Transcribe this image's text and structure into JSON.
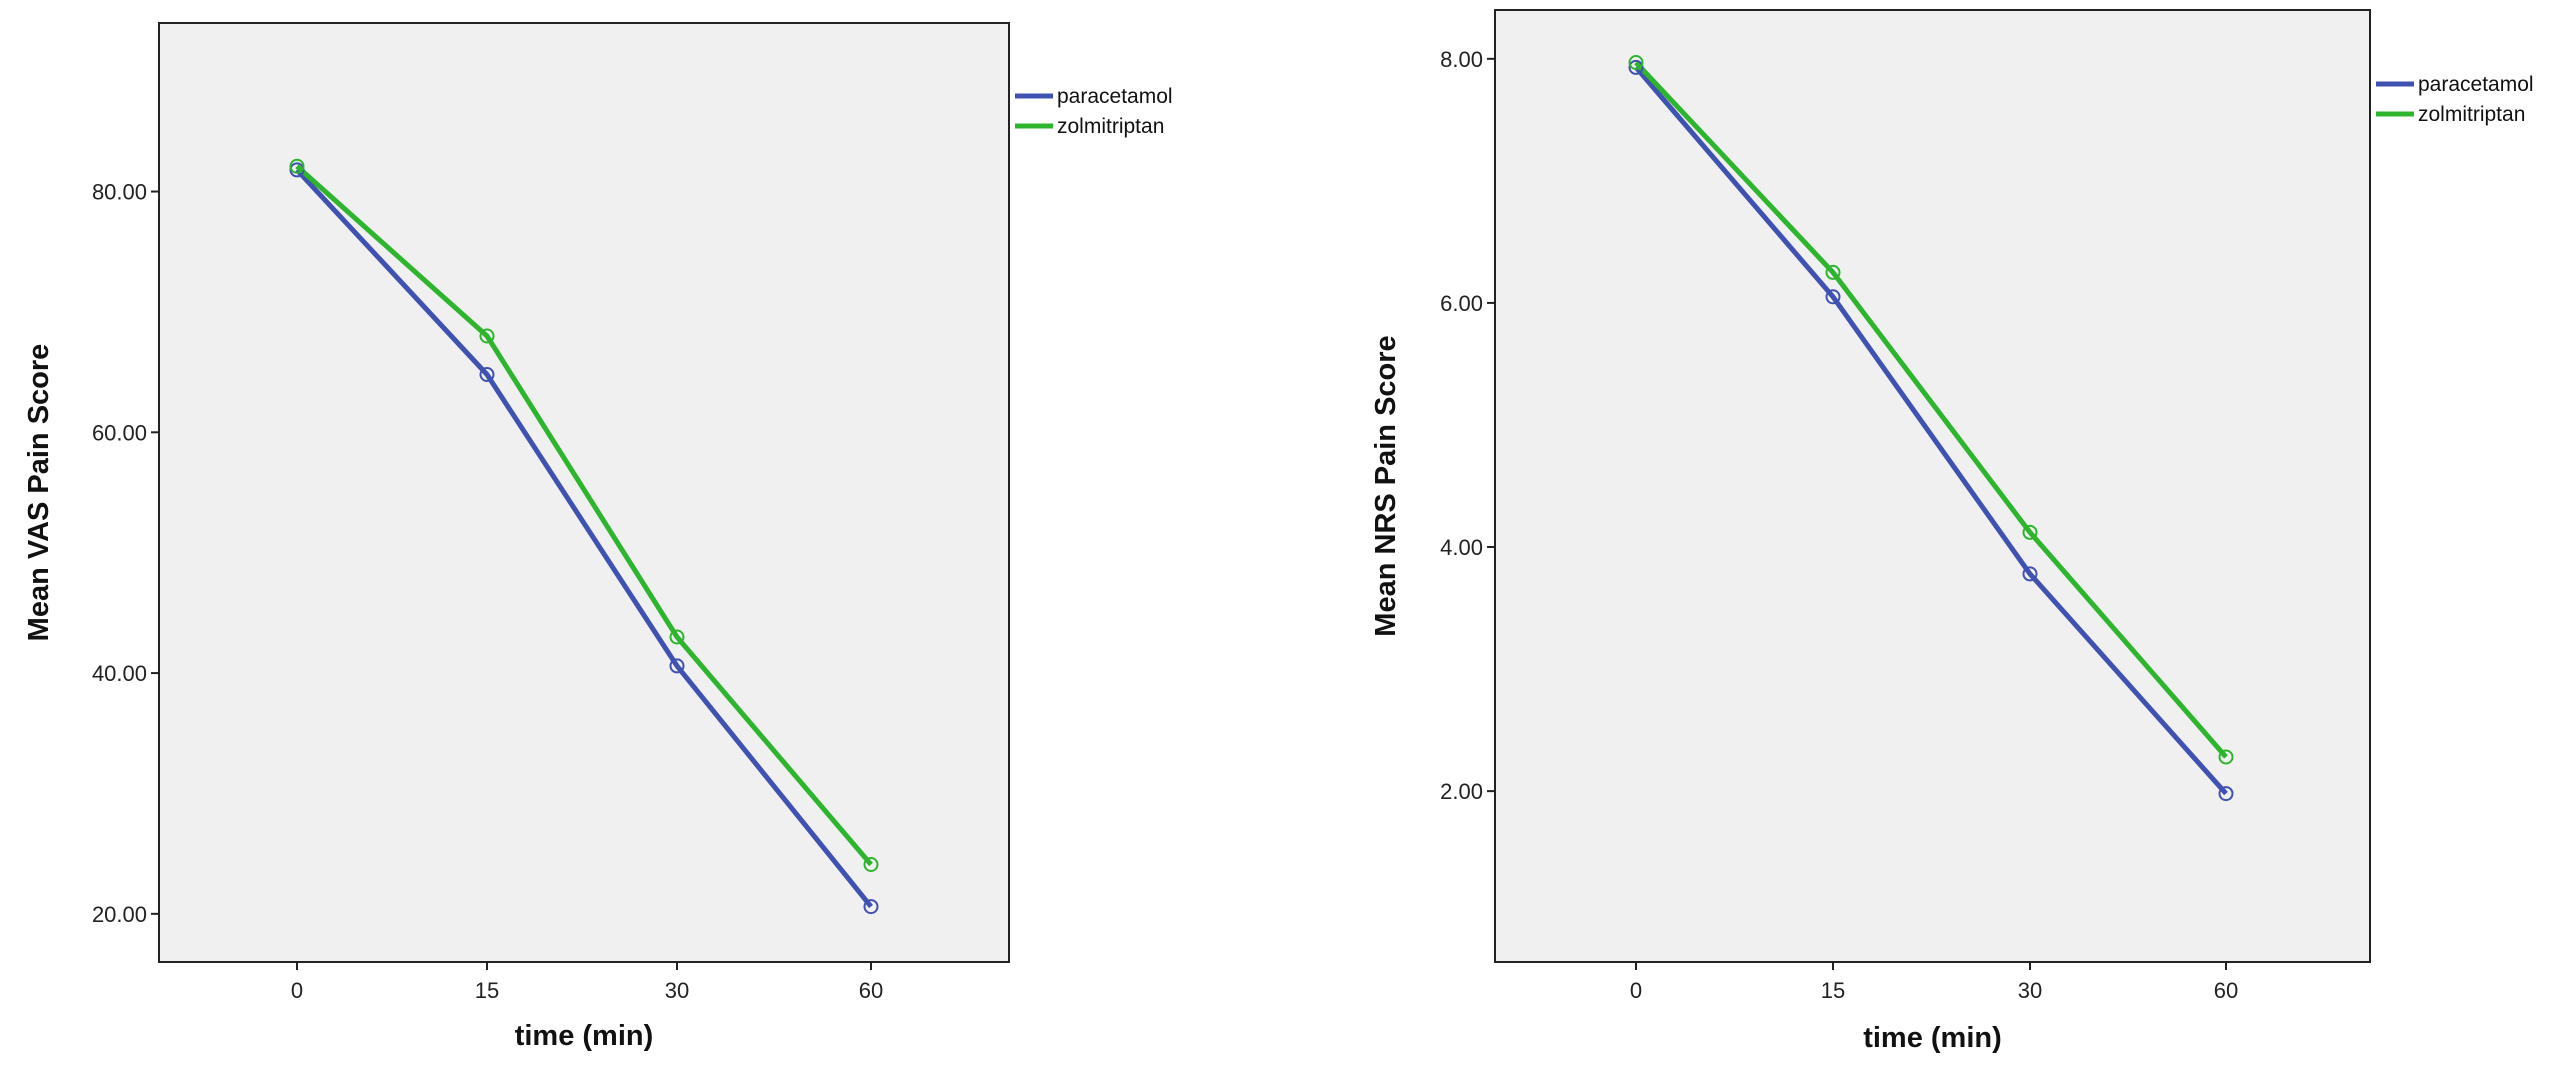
{
  "chart_data": [
    {
      "type": "line",
      "title": "",
      "xlabel": "time (min)",
      "ylabel": "Mean VAS Pain Score",
      "categories": [
        "0",
        "15",
        "30",
        "60"
      ],
      "y_ticks": [
        "20.00",
        "40.00",
        "60.00",
        "80.00"
      ],
      "ylim": [
        16,
        94
      ],
      "grid": false,
      "legend_position": "top-right",
      "series": [
        {
          "name": "paracetamol",
          "color": "#3F51B1",
          "values": [
            81.8,
            64.8,
            40.6,
            20.6
          ]
        },
        {
          "name": "zolmitriptan",
          "color": "#2DB52D",
          "values": [
            82.1,
            68.0,
            43.0,
            24.1
          ]
        }
      ]
    },
    {
      "type": "line",
      "title": "",
      "xlabel": "time (min)",
      "ylabel": "Mean NRS Pain Score",
      "categories": [
        "0",
        "15",
        "30",
        "60"
      ],
      "y_ticks": [
        "2.00",
        "4.00",
        "6.00",
        "8.00"
      ],
      "ylim": [
        0.6,
        8.4
      ],
      "grid": false,
      "legend_position": "top-right",
      "series": [
        {
          "name": "paracetamol",
          "color": "#3F51B1",
          "values": [
            7.93,
            6.05,
            3.78,
            1.98
          ]
        },
        {
          "name": "zolmitriptan",
          "color": "#2DB52D",
          "values": [
            7.97,
            6.25,
            4.12,
            2.28
          ]
        }
      ]
    }
  ]
}
